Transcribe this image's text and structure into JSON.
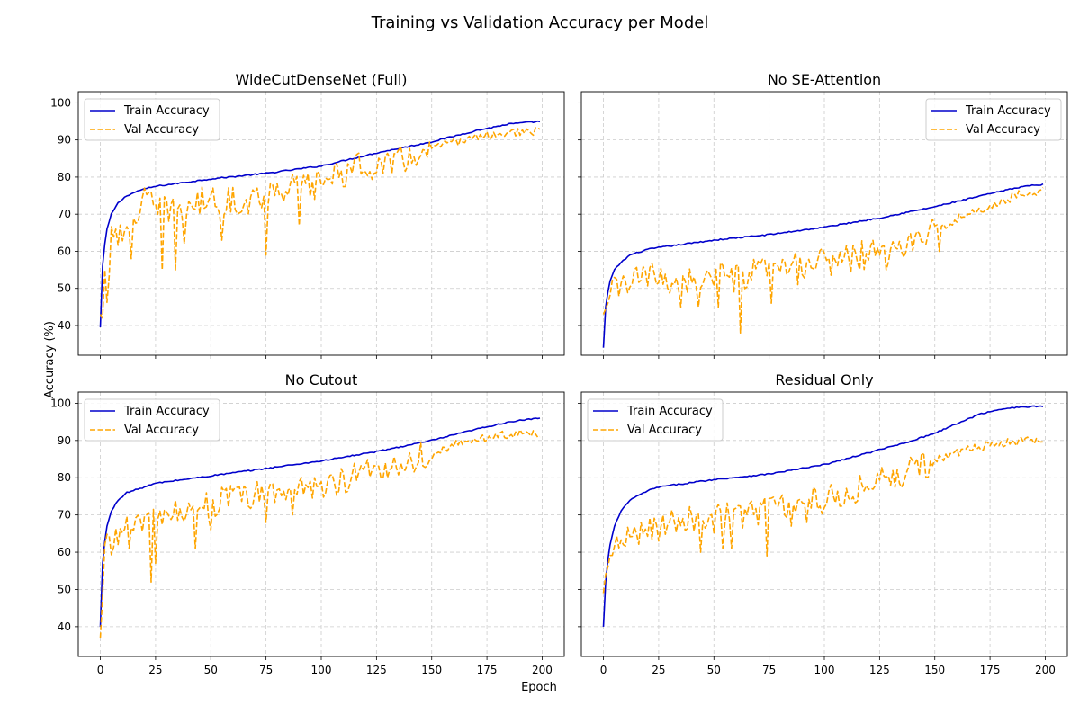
{
  "figure": {
    "title": "Training vs Validation Accuracy per Model",
    "xlabel": "Epoch",
    "ylabel": "Accuracy (%)"
  },
  "chart_data": [
    {
      "type": "line",
      "title": "WideCutDenseNet (Full)",
      "xlim": [
        -10,
        210
      ],
      "ylim": [
        32,
        103
      ],
      "xticks": [
        0,
        25,
        50,
        75,
        100,
        125,
        150,
        175,
        200
      ],
      "yticks": [
        40,
        50,
        60,
        70,
        80,
        90,
        100
      ],
      "grid": true,
      "legend_position": "top-left",
      "x_range": [
        0,
        199
      ],
      "series": [
        {
          "name": "Train Accuracy",
          "color": "#0000cc",
          "style": "solid",
          "keypoints": [
            [
              0,
              39.5
            ],
            [
              1,
              56
            ],
            [
              2,
              62
            ],
            [
              3,
              66
            ],
            [
              5,
              70
            ],
            [
              8,
              73
            ],
            [
              12,
              75
            ],
            [
              18,
              76.5
            ],
            [
              25,
              77.5
            ],
            [
              50,
              79.5
            ],
            [
              75,
              81
            ],
            [
              100,
              83
            ],
            [
              125,
              86.5
            ],
            [
              150,
              89.5
            ],
            [
              170,
              92.5
            ],
            [
              185,
              94.3
            ],
            [
              199,
              95
            ]
          ]
        },
        {
          "name": "Val Accuracy",
          "color": "#ffa500",
          "style": "dashed",
          "keypoints": [
            [
              0,
              43
            ],
            [
              1,
              42
            ],
            [
              2,
              55
            ],
            [
              3,
              46
            ],
            [
              5,
              68
            ],
            [
              8,
              66
            ],
            [
              10,
              62
            ],
            [
              15,
              70
            ],
            [
              20,
              75
            ],
            [
              25,
              72
            ],
            [
              30,
              72
            ],
            [
              40,
              73
            ],
            [
              50,
              75
            ],
            [
              60,
              74
            ],
            [
              70,
              75
            ],
            [
              80,
              78
            ],
            [
              90,
              78
            ],
            [
              100,
              80
            ],
            [
              110,
              82
            ],
            [
              120,
              84
            ],
            [
              130,
              84
            ],
            [
              140,
              86
            ],
            [
              150,
              88
            ],
            [
              160,
              89.5
            ],
            [
              170,
              91
            ],
            [
              180,
              91.8
            ],
            [
              190,
              92.3
            ],
            [
              199,
              92.5
            ]
          ],
          "dips": [
            [
              14,
              58
            ],
            [
              28,
              55
            ],
            [
              34,
              55
            ],
            [
              38,
              62
            ],
            [
              55,
              63
            ],
            [
              75,
              59
            ],
            [
              90,
              67
            ],
            [
              97,
              74
            ],
            [
              132,
              81
            ]
          ]
        }
      ]
    },
    {
      "type": "line",
      "title": "No SE-Attention",
      "xlim": [
        -10,
        210
      ],
      "ylim": [
        32,
        103
      ],
      "xticks": [
        0,
        25,
        50,
        75,
        100,
        125,
        150,
        175,
        200
      ],
      "yticks": [
        40,
        50,
        60,
        70,
        80,
        90,
        100
      ],
      "grid": true,
      "legend_position": "top-right",
      "x_range": [
        0,
        199
      ],
      "series": [
        {
          "name": "Train Accuracy",
          "color": "#0000cc",
          "style": "solid",
          "keypoints": [
            [
              0,
              34
            ],
            [
              1,
              45
            ],
            [
              2,
              49
            ],
            [
              3,
              52
            ],
            [
              5,
              55
            ],
            [
              8,
              57
            ],
            [
              12,
              59
            ],
            [
              20,
              60.5
            ],
            [
              25,
              61
            ],
            [
              50,
              63
            ],
            [
              75,
              64.5
            ],
            [
              100,
              66.5
            ],
            [
              125,
              69
            ],
            [
              150,
              72
            ],
            [
              175,
              75.5
            ],
            [
              190,
              77.5
            ],
            [
              199,
              78
            ]
          ]
        },
        {
          "name": "Val Accuracy",
          "color": "#ffa500",
          "style": "dashed",
          "keypoints": [
            [
              0,
              43
            ],
            [
              2,
              46
            ],
            [
              5,
              51
            ],
            [
              10,
              52
            ],
            [
              20,
              54
            ],
            [
              30,
              53
            ],
            [
              40,
              53
            ],
            [
              50,
              54
            ],
            [
              60,
              53
            ],
            [
              70,
              55
            ],
            [
              80,
              56
            ],
            [
              90,
              57
            ],
            [
              100,
              58
            ],
            [
              110,
              59
            ],
            [
              120,
              60
            ],
            [
              130,
              61
            ],
            [
              140,
              63
            ],
            [
              150,
              66
            ],
            [
              160,
              69
            ],
            [
              170,
              71
            ],
            [
              180,
              73.5
            ],
            [
              190,
              76
            ],
            [
              199,
              76.5
            ]
          ],
          "dips": [
            [
              35,
              45
            ],
            [
              43,
              45
            ],
            [
              52,
              45
            ],
            [
              62,
              38
            ],
            [
              76,
              46
            ],
            [
              88,
              51
            ],
            [
              128,
              55
            ],
            [
              152,
              60
            ]
          ]
        }
      ]
    },
    {
      "type": "line",
      "title": "No Cutout",
      "xlim": [
        -10,
        210
      ],
      "ylim": [
        32,
        103
      ],
      "xticks": [
        0,
        25,
        50,
        75,
        100,
        125,
        150,
        175,
        200
      ],
      "yticks": [
        40,
        50,
        60,
        70,
        80,
        90,
        100
      ],
      "grid": true,
      "legend_position": "top-left",
      "x_range": [
        0,
        199
      ],
      "series": [
        {
          "name": "Train Accuracy",
          "color": "#0000cc",
          "style": "solid",
          "keypoints": [
            [
              0,
              40
            ],
            [
              1,
              57
            ],
            [
              2,
              63
            ],
            [
              3,
              67
            ],
            [
              5,
              71
            ],
            [
              8,
              74
            ],
            [
              12,
              76
            ],
            [
              20,
              77.5
            ],
            [
              25,
              78.5
            ],
            [
              50,
              80.5
            ],
            [
              75,
              82.5
            ],
            [
              100,
              84.5
            ],
            [
              125,
              87
            ],
            [
              150,
              90
            ],
            [
              170,
              93
            ],
            [
              185,
              95
            ],
            [
              199,
              96
            ]
          ]
        },
        {
          "name": "Val Accuracy",
          "color": "#ffa500",
          "style": "dashed",
          "keypoints": [
            [
              0,
              37
            ],
            [
              1,
              48
            ],
            [
              2,
              62
            ],
            [
              3,
              64
            ],
            [
              5,
              62
            ],
            [
              8,
              66
            ],
            [
              12,
              67
            ],
            [
              20,
              70
            ],
            [
              25,
              68
            ],
            [
              30,
              70
            ],
            [
              40,
              73
            ],
            [
              50,
              74
            ],
            [
              60,
              75
            ],
            [
              70,
              76
            ],
            [
              80,
              77
            ],
            [
              90,
              78
            ],
            [
              100,
              79
            ],
            [
              110,
              80
            ],
            [
              120,
              82
            ],
            [
              130,
              84
            ],
            [
              140,
              86
            ],
            [
              150,
              87
            ],
            [
              160,
              89
            ],
            [
              170,
              90.5
            ],
            [
              180,
              91.5
            ],
            [
              190,
              92
            ],
            [
              199,
              92
            ]
          ]
        },
        {
          "name": "",
          "color": "#ffa500",
          "style": "dashed",
          "keypoints": []
        }
      ],
      "dips_for": "Val Accuracy",
      "dips": [
        [
          13,
          61
        ],
        [
          23,
          52
        ],
        [
          25,
          57
        ],
        [
          43,
          61
        ],
        [
          50,
          66
        ],
        [
          75,
          68
        ],
        [
          87,
          70
        ],
        [
          102,
          76
        ],
        [
          130,
          80
        ],
        [
          150,
          85
        ]
      ]
    },
    {
      "type": "line",
      "title": "Residual Only",
      "xlim": [
        -10,
        210
      ],
      "ylim": [
        32,
        103
      ],
      "xticks": [
        0,
        25,
        50,
        75,
        100,
        125,
        150,
        175,
        200
      ],
      "yticks": [
        40,
        50,
        60,
        70,
        80,
        90,
        100
      ],
      "grid": true,
      "legend_position": "top-left",
      "x_range": [
        0,
        199
      ],
      "series": [
        {
          "name": "Train Accuracy",
          "color": "#0000cc",
          "style": "solid",
          "keypoints": [
            [
              0,
              40
            ],
            [
              1,
              52
            ],
            [
              2,
              58
            ],
            [
              3,
              62
            ],
            [
              5,
              67
            ],
            [
              8,
              71
            ],
            [
              12,
              74
            ],
            [
              20,
              76.5
            ],
            [
              25,
              77.5
            ],
            [
              50,
              79.5
            ],
            [
              75,
              81
            ],
            [
              100,
              83.5
            ],
            [
              125,
              87.5
            ],
            [
              140,
              90
            ],
            [
              150,
              92
            ],
            [
              160,
              94.5
            ],
            [
              170,
              97
            ],
            [
              180,
              98.5
            ],
            [
              190,
              99
            ],
            [
              199,
              99.2
            ]
          ]
        },
        {
          "name": "Val Accuracy",
          "color": "#ffa500",
          "style": "dashed",
          "keypoints": [
            [
              0,
              49
            ],
            [
              1,
              54
            ],
            [
              3,
              58
            ],
            [
              5,
              61
            ],
            [
              8,
              63
            ],
            [
              12,
              65
            ],
            [
              20,
              68
            ],
            [
              30,
              69
            ],
            [
              40,
              70
            ],
            [
              50,
              70
            ],
            [
              60,
              71
            ],
            [
              70,
              72
            ],
            [
              80,
              73
            ],
            [
              90,
              74
            ],
            [
              100,
              75
            ],
            [
              110,
              77
            ],
            [
              120,
              79
            ],
            [
              130,
              81
            ],
            [
              140,
              83
            ],
            [
              150,
              85
            ],
            [
              160,
              87
            ],
            [
              170,
              88.5
            ],
            [
              180,
              89.5
            ],
            [
              190,
              90
            ],
            [
              199,
              90.2
            ]
          ]
        }
      ],
      "dips_for": "Val Accuracy",
      "dips": [
        [
          25,
          63
        ],
        [
          44,
          60
        ],
        [
          54,
          61
        ],
        [
          58,
          61
        ],
        [
          74,
          59
        ],
        [
          85,
          67
        ],
        [
          92,
          68
        ]
      ]
    }
  ]
}
